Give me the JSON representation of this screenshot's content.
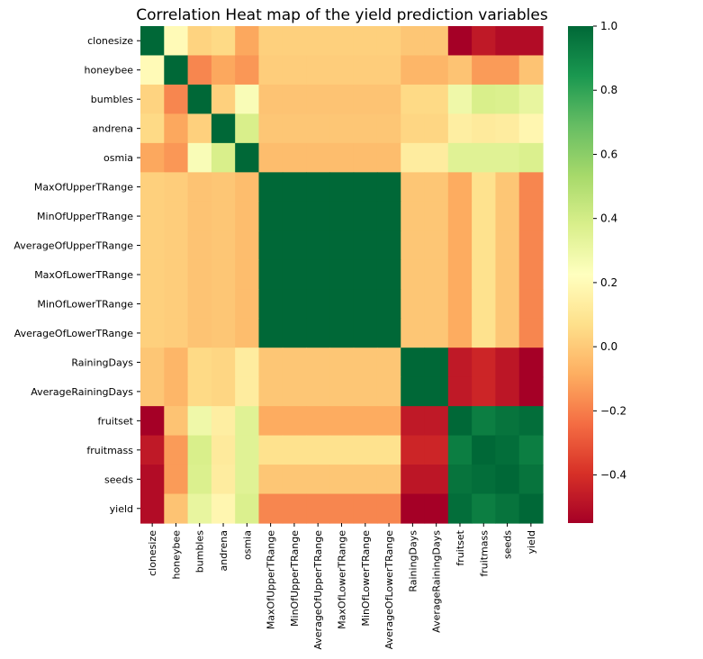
{
  "chart_data": {
    "type": "heatmap",
    "title": "Correlation Heat map of the yield prediction variables",
    "xlabel": "",
    "ylabel": "",
    "variables": [
      "clonesize",
      "honeybee",
      "bumbles",
      "andrena",
      "osmia",
      "MaxOfUpperTRange",
      "MinOfUpperTRange",
      "AverageOfUpperTRange",
      "MaxOfLowerTRange",
      "MinOfLowerTRange",
      "AverageOfLowerTRange",
      "RainingDays",
      "AverageRainingDays",
      "fruitset",
      "fruitmass",
      "seeds",
      "yield"
    ],
    "matrix": [
      [
        1.0,
        0.2,
        0.03,
        0.05,
        -0.1,
        0.02,
        0.02,
        0.02,
        0.02,
        0.02,
        0.02,
        -0.01,
        -0.01,
        -0.55,
        -0.47,
        -0.51,
        -0.51
      ],
      [
        0.2,
        1.0,
        -0.18,
        -0.1,
        -0.14,
        0.01,
        0.01,
        0.01,
        0.01,
        0.01,
        0.01,
        -0.06,
        -0.06,
        -0.02,
        -0.13,
        -0.13,
        -0.02
      ],
      [
        0.03,
        -0.18,
        1.0,
        0.02,
        0.25,
        -0.02,
        -0.02,
        -0.02,
        -0.02,
        -0.02,
        -0.02,
        0.05,
        0.05,
        0.29,
        0.38,
        0.37,
        0.32
      ],
      [
        0.05,
        -0.1,
        0.02,
        1.0,
        0.38,
        -0.01,
        -0.01,
        -0.01,
        -0.01,
        -0.01,
        -0.01,
        0.04,
        0.04,
        0.14,
        0.12,
        0.13,
        0.18
      ],
      [
        -0.1,
        -0.14,
        0.25,
        0.38,
        1.0,
        -0.04,
        -0.04,
        -0.04,
        -0.04,
        -0.04,
        -0.04,
        0.13,
        0.13,
        0.35,
        0.35,
        0.35,
        0.37
      ],
      [
        0.02,
        0.01,
        -0.02,
        -0.01,
        -0.04,
        1.0,
        1.0,
        1.0,
        1.0,
        1.0,
        1.0,
        -0.01,
        -0.01,
        -0.09,
        0.08,
        -0.01,
        -0.18
      ],
      [
        0.02,
        0.01,
        -0.02,
        -0.01,
        -0.04,
        1.0,
        1.0,
        1.0,
        1.0,
        1.0,
        1.0,
        -0.01,
        -0.01,
        -0.09,
        0.08,
        -0.01,
        -0.18
      ],
      [
        0.02,
        0.01,
        -0.02,
        -0.01,
        -0.04,
        1.0,
        1.0,
        1.0,
        1.0,
        1.0,
        1.0,
        -0.01,
        -0.01,
        -0.09,
        0.08,
        -0.01,
        -0.18
      ],
      [
        0.02,
        0.01,
        -0.02,
        -0.01,
        -0.04,
        1.0,
        1.0,
        1.0,
        1.0,
        1.0,
        1.0,
        -0.01,
        -0.01,
        -0.09,
        0.08,
        -0.01,
        -0.18
      ],
      [
        0.02,
        0.01,
        -0.02,
        -0.01,
        -0.04,
        1.0,
        1.0,
        1.0,
        1.0,
        1.0,
        1.0,
        -0.01,
        -0.01,
        -0.09,
        0.08,
        -0.01,
        -0.18
      ],
      [
        0.02,
        0.01,
        -0.02,
        -0.01,
        -0.04,
        1.0,
        1.0,
        1.0,
        1.0,
        1.0,
        1.0,
        -0.01,
        -0.01,
        -0.09,
        0.08,
        -0.01,
        -0.18
      ],
      [
        -0.01,
        -0.06,
        0.05,
        0.04,
        0.13,
        -0.01,
        -0.01,
        -0.01,
        -0.01,
        -0.01,
        -0.01,
        1.0,
        1.0,
        -0.47,
        -0.43,
        -0.48,
        -0.55
      ],
      [
        -0.01,
        -0.06,
        0.05,
        0.04,
        0.13,
        -0.01,
        -0.01,
        -0.01,
        -0.01,
        -0.01,
        -0.01,
        1.0,
        1.0,
        -0.47,
        -0.43,
        -0.48,
        -0.55
      ],
      [
        -0.55,
        -0.02,
        0.29,
        0.14,
        0.35,
        -0.09,
        -0.09,
        -0.09,
        -0.09,
        -0.09,
        -0.09,
        -0.47,
        -0.47,
        1.0,
        0.93,
        0.96,
        0.98
      ],
      [
        -0.47,
        -0.13,
        0.38,
        0.12,
        0.35,
        0.08,
        0.08,
        0.08,
        0.08,
        0.08,
        0.08,
        -0.43,
        -0.43,
        0.93,
        1.0,
        0.98,
        0.93
      ],
      [
        -0.51,
        -0.13,
        0.37,
        0.13,
        0.35,
        -0.01,
        -0.01,
        -0.01,
        -0.01,
        -0.01,
        -0.01,
        -0.48,
        -0.48,
        0.96,
        0.98,
        1.0,
        0.96
      ],
      [
        -0.51,
        -0.02,
        0.32,
        0.18,
        0.37,
        -0.18,
        -0.18,
        -0.18,
        -0.18,
        -0.18,
        -0.18,
        -0.55,
        -0.55,
        0.98,
        0.93,
        0.96,
        1.0
      ]
    ],
    "colorscale": "RdYlGn",
    "colorbar": {
      "vmin": -0.55,
      "vmax": 1.0,
      "ticks": [
        "1.0",
        "0.8",
        "0.6",
        "0.4",
        "0.2",
        "0.0",
        "−0.2",
        "−0.4"
      ],
      "tick_values": [
        1.0,
        0.8,
        0.6,
        0.4,
        0.2,
        0.0,
        -0.2,
        -0.4
      ],
      "placement": "right"
    },
    "grid": false
  }
}
